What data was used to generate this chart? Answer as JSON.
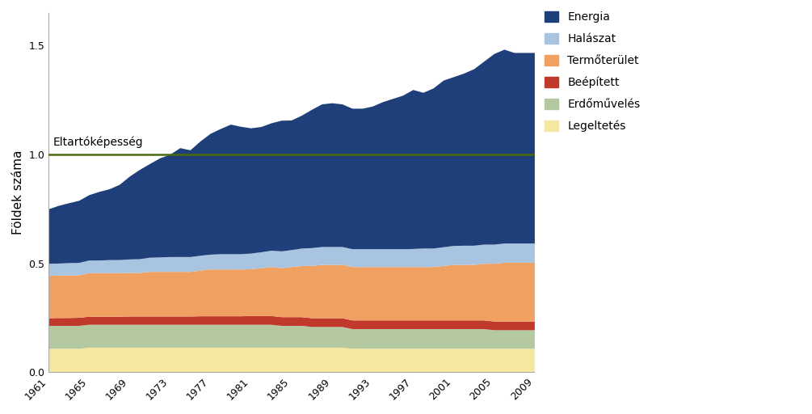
{
  "title": "",
  "ylabel": "Földek száma",
  "years": [
    1961,
    1962,
    1963,
    1964,
    1965,
    1966,
    1967,
    1968,
    1969,
    1970,
    1971,
    1972,
    1973,
    1974,
    1975,
    1976,
    1977,
    1978,
    1979,
    1980,
    1981,
    1982,
    1983,
    1984,
    1985,
    1986,
    1987,
    1988,
    1989,
    1990,
    1991,
    1992,
    1993,
    1994,
    1995,
    1996,
    1997,
    1998,
    1999,
    2000,
    2001,
    2002,
    2003,
    2004,
    2005,
    2006,
    2007,
    2008,
    2009
  ],
  "legeltes": [
    0.11,
    0.11,
    0.11,
    0.11,
    0.115,
    0.115,
    0.115,
    0.115,
    0.115,
    0.115,
    0.115,
    0.115,
    0.115,
    0.115,
    0.115,
    0.115,
    0.115,
    0.115,
    0.115,
    0.115,
    0.115,
    0.115,
    0.115,
    0.115,
    0.115,
    0.115,
    0.115,
    0.115,
    0.115,
    0.115,
    0.11,
    0.11,
    0.11,
    0.11,
    0.11,
    0.11,
    0.11,
    0.11,
    0.11,
    0.11,
    0.11,
    0.11,
    0.11,
    0.11,
    0.11,
    0.11,
    0.11,
    0.11,
    0.11
  ],
  "erdoamuaves": [
    0.105,
    0.105,
    0.105,
    0.105,
    0.105,
    0.105,
    0.105,
    0.105,
    0.105,
    0.105,
    0.105,
    0.105,
    0.105,
    0.105,
    0.105,
    0.105,
    0.105,
    0.105,
    0.105,
    0.105,
    0.105,
    0.105,
    0.105,
    0.1,
    0.1,
    0.1,
    0.095,
    0.095,
    0.095,
    0.095,
    0.09,
    0.09,
    0.09,
    0.09,
    0.09,
    0.09,
    0.09,
    0.09,
    0.09,
    0.09,
    0.09,
    0.09,
    0.09,
    0.09,
    0.085,
    0.085,
    0.085,
    0.085,
    0.085
  ],
  "beepitett": [
    0.035,
    0.036,
    0.036,
    0.037,
    0.037,
    0.037,
    0.037,
    0.037,
    0.038,
    0.038,
    0.038,
    0.038,
    0.038,
    0.038,
    0.038,
    0.039,
    0.039,
    0.039,
    0.039,
    0.039,
    0.04,
    0.04,
    0.04,
    0.04,
    0.04,
    0.04,
    0.04,
    0.04,
    0.04,
    0.04,
    0.04,
    0.04,
    0.04,
    0.04,
    0.04,
    0.04,
    0.04,
    0.04,
    0.04,
    0.04,
    0.04,
    0.04,
    0.04,
    0.04,
    0.04,
    0.04,
    0.04,
    0.04,
    0.04
  ],
  "termoterulet": [
    0.195,
    0.195,
    0.195,
    0.195,
    0.2,
    0.2,
    0.2,
    0.2,
    0.2,
    0.2,
    0.205,
    0.205,
    0.205,
    0.205,
    0.205,
    0.21,
    0.215,
    0.215,
    0.215,
    0.215,
    0.215,
    0.22,
    0.225,
    0.225,
    0.23,
    0.235,
    0.24,
    0.245,
    0.245,
    0.245,
    0.245,
    0.245,
    0.245,
    0.245,
    0.245,
    0.245,
    0.245,
    0.245,
    0.245,
    0.25,
    0.255,
    0.255,
    0.255,
    0.26,
    0.265,
    0.27,
    0.27,
    0.27,
    0.27
  ],
  "halaszat": [
    0.055,
    0.055,
    0.057,
    0.057,
    0.058,
    0.058,
    0.06,
    0.06,
    0.062,
    0.063,
    0.065,
    0.066,
    0.068,
    0.068,
    0.068,
    0.068,
    0.068,
    0.07,
    0.07,
    0.07,
    0.072,
    0.073,
    0.075,
    0.077,
    0.078,
    0.08,
    0.082,
    0.082,
    0.082,
    0.082,
    0.082,
    0.082,
    0.082,
    0.082,
    0.082,
    0.082,
    0.083,
    0.085,
    0.085,
    0.086,
    0.087,
    0.088,
    0.088,
    0.088,
    0.088,
    0.088,
    0.088,
    0.088,
    0.088
  ],
  "energia": [
    0.25,
    0.265,
    0.275,
    0.285,
    0.3,
    0.315,
    0.325,
    0.345,
    0.38,
    0.41,
    0.43,
    0.455,
    0.47,
    0.5,
    0.49,
    0.525,
    0.555,
    0.575,
    0.595,
    0.585,
    0.575,
    0.575,
    0.585,
    0.6,
    0.595,
    0.61,
    0.635,
    0.655,
    0.66,
    0.655,
    0.645,
    0.645,
    0.655,
    0.675,
    0.69,
    0.705,
    0.73,
    0.715,
    0.735,
    0.765,
    0.775,
    0.79,
    0.81,
    0.84,
    0.875,
    0.89,
    0.875,
    0.875,
    0.875
  ],
  "colors": {
    "legeltes": "#f5e6a0",
    "erdoamuaves": "#b5c9a0",
    "beepitett": "#c0392b",
    "termoterulet": "#f0a060",
    "halaszat": "#a8c4e0",
    "energia": "#1f3f7a"
  },
  "carrying_capacity_label": "Eltartóképesség",
  "carrying_capacity_value": 1.0,
  "ylim": [
    0,
    1.65
  ],
  "yticks": [
    0,
    0.5,
    1.0,
    1.5
  ],
  "background_color": "#ffffff"
}
